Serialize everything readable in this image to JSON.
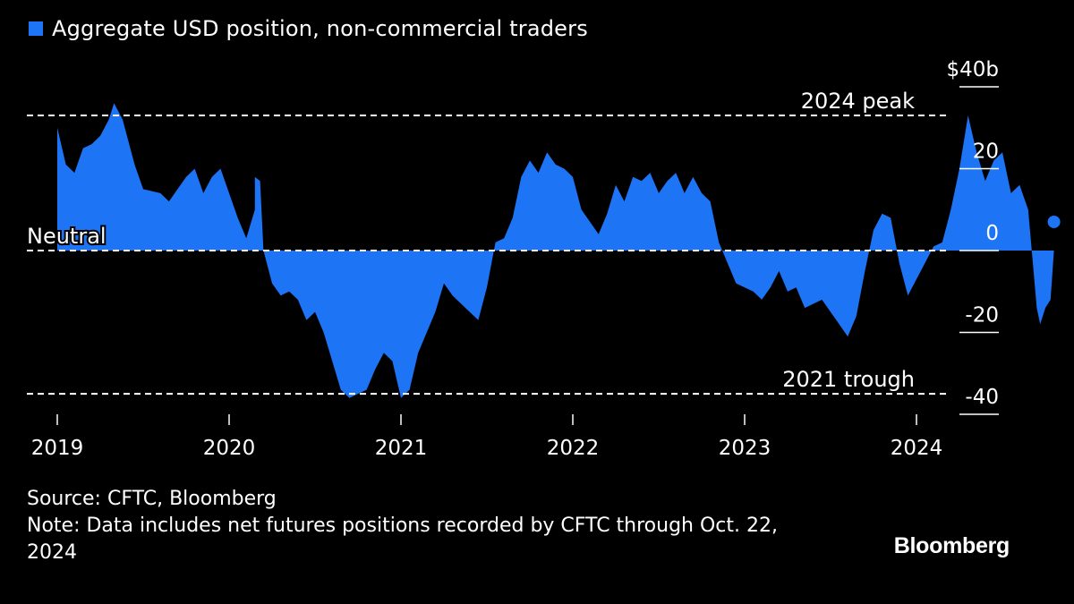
{
  "legend": {
    "label": "Aggregate USD position, non-commercial traders",
    "color": "#1d74f5"
  },
  "source": "Source: CFTC, Bloomberg",
  "note": "Note: Data includes net futures positions recorded by CFTC through Oct. 22, 2024",
  "brand": "Bloomberg",
  "chart_data": {
    "type": "area",
    "ylabel": "",
    "y_unit_prefix": "$",
    "y_unit_suffix": "b",
    "ylim": [
      -40,
      40
    ],
    "yticks": [
      40,
      20,
      0,
      -20,
      -40
    ],
    "ytick_labels": [
      "$40b",
      "20",
      "0",
      "-20",
      "-40"
    ],
    "xlim": [
      2019.0,
      2025.0
    ],
    "xticks": [
      2019,
      2020,
      2021,
      2022,
      2023,
      2024
    ],
    "xtick_labels": [
      "2019",
      "2020",
      "2021",
      "2022",
      "2023",
      "2024"
    ],
    "reference_lines": [
      {
        "label": "2024 peak",
        "value": 33
      },
      {
        "label": "Neutral",
        "value": 0
      },
      {
        "label": "2021 trough",
        "value": -35
      }
    ],
    "series": [
      {
        "color": "#1d74f5",
        "points": [
          [
            2019.0,
            30
          ],
          [
            2019.05,
            21
          ],
          [
            2019.1,
            19
          ],
          [
            2019.15,
            25
          ],
          [
            2019.2,
            26
          ],
          [
            2019.25,
            28
          ],
          [
            2019.3,
            32
          ],
          [
            2019.33,
            36
          ],
          [
            2019.38,
            32
          ],
          [
            2019.45,
            21
          ],
          [
            2019.5,
            15
          ],
          [
            2019.6,
            14
          ],
          [
            2019.65,
            12
          ],
          [
            2019.7,
            15
          ],
          [
            2019.75,
            18
          ],
          [
            2019.8,
            20
          ],
          [
            2019.85,
            14
          ],
          [
            2019.9,
            18
          ],
          [
            2019.95,
            20
          ],
          [
            2020.0,
            14
          ],
          [
            2020.05,
            8
          ],
          [
            2020.1,
            3
          ],
          [
            2020.15,
            10
          ],
          [
            2020.15,
            18
          ],
          [
            2020.18,
            17
          ],
          [
            2020.2,
            0
          ],
          [
            2020.25,
            -8
          ],
          [
            2020.3,
            -11
          ],
          [
            2020.35,
            -10
          ],
          [
            2020.4,
            -12
          ],
          [
            2020.45,
            -17
          ],
          [
            2020.5,
            -15
          ],
          [
            2020.55,
            -20
          ],
          [
            2020.6,
            -27
          ],
          [
            2020.65,
            -34
          ],
          [
            2020.7,
            -36
          ],
          [
            2020.75,
            -35
          ],
          [
            2020.8,
            -34
          ],
          [
            2020.85,
            -29
          ],
          [
            2020.9,
            -25
          ],
          [
            2020.95,
            -27
          ],
          [
            2021.0,
            -36
          ],
          [
            2021.05,
            -34
          ],
          [
            2021.1,
            -25
          ],
          [
            2021.15,
            -20
          ],
          [
            2021.2,
            -15
          ],
          [
            2021.25,
            -8
          ],
          [
            2021.3,
            -11
          ],
          [
            2021.35,
            -13
          ],
          [
            2021.4,
            -15
          ],
          [
            2021.45,
            -17
          ],
          [
            2021.5,
            -9
          ],
          [
            2021.55,
            2
          ],
          [
            2021.6,
            3
          ],
          [
            2021.65,
            8
          ],
          [
            2021.7,
            18
          ],
          [
            2021.75,
            22
          ],
          [
            2021.8,
            19
          ],
          [
            2021.85,
            24
          ],
          [
            2021.9,
            21
          ],
          [
            2021.95,
            20
          ],
          [
            2022.0,
            18
          ],
          [
            2022.05,
            10
          ],
          [
            2022.1,
            7
          ],
          [
            2022.15,
            4
          ],
          [
            2022.2,
            9
          ],
          [
            2022.25,
            16
          ],
          [
            2022.3,
            12
          ],
          [
            2022.35,
            18
          ],
          [
            2022.4,
            17
          ],
          [
            2022.45,
            19
          ],
          [
            2022.5,
            14
          ],
          [
            2022.55,
            17
          ],
          [
            2022.6,
            19
          ],
          [
            2022.65,
            14
          ],
          [
            2022.7,
            18
          ],
          [
            2022.75,
            14
          ],
          [
            2022.8,
            12
          ],
          [
            2022.85,
            2
          ],
          [
            2022.9,
            -3
          ],
          [
            2022.95,
            -8
          ],
          [
            2023.0,
            -9
          ],
          [
            2023.05,
            -10
          ],
          [
            2023.1,
            -12
          ],
          [
            2023.15,
            -9
          ],
          [
            2023.2,
            -5
          ],
          [
            2023.25,
            -10
          ],
          [
            2023.3,
            -9
          ],
          [
            2023.35,
            -14
          ],
          [
            2023.4,
            -13
          ],
          [
            2023.45,
            -12
          ],
          [
            2023.5,
            -15
          ],
          [
            2023.55,
            -18
          ],
          [
            2023.6,
            -21
          ],
          [
            2023.65,
            -16
          ],
          [
            2023.7,
            -5
          ],
          [
            2023.75,
            5
          ],
          [
            2023.8,
            9
          ],
          [
            2023.85,
            8
          ],
          [
            2023.9,
            -3
          ],
          [
            2023.95,
            -11
          ],
          [
            2024.0,
            -7
          ],
          [
            2024.05,
            -3
          ],
          [
            2024.1,
            1
          ],
          [
            2024.15,
            2
          ],
          [
            2024.2,
            10
          ],
          [
            2024.25,
            20
          ],
          [
            2024.3,
            33
          ],
          [
            2024.35,
            24
          ],
          [
            2024.4,
            17
          ],
          [
            2024.45,
            22
          ],
          [
            2024.5,
            24
          ],
          [
            2024.55,
            14
          ],
          [
            2024.6,
            16
          ],
          [
            2024.65,
            10
          ],
          [
            2024.7,
            -14
          ],
          [
            2024.72,
            -18
          ],
          [
            2024.75,
            -14
          ],
          [
            2024.78,
            -12
          ],
          [
            2024.8,
            0
          ],
          [
            2024.8,
            7
          ]
        ]
      }
    ]
  }
}
